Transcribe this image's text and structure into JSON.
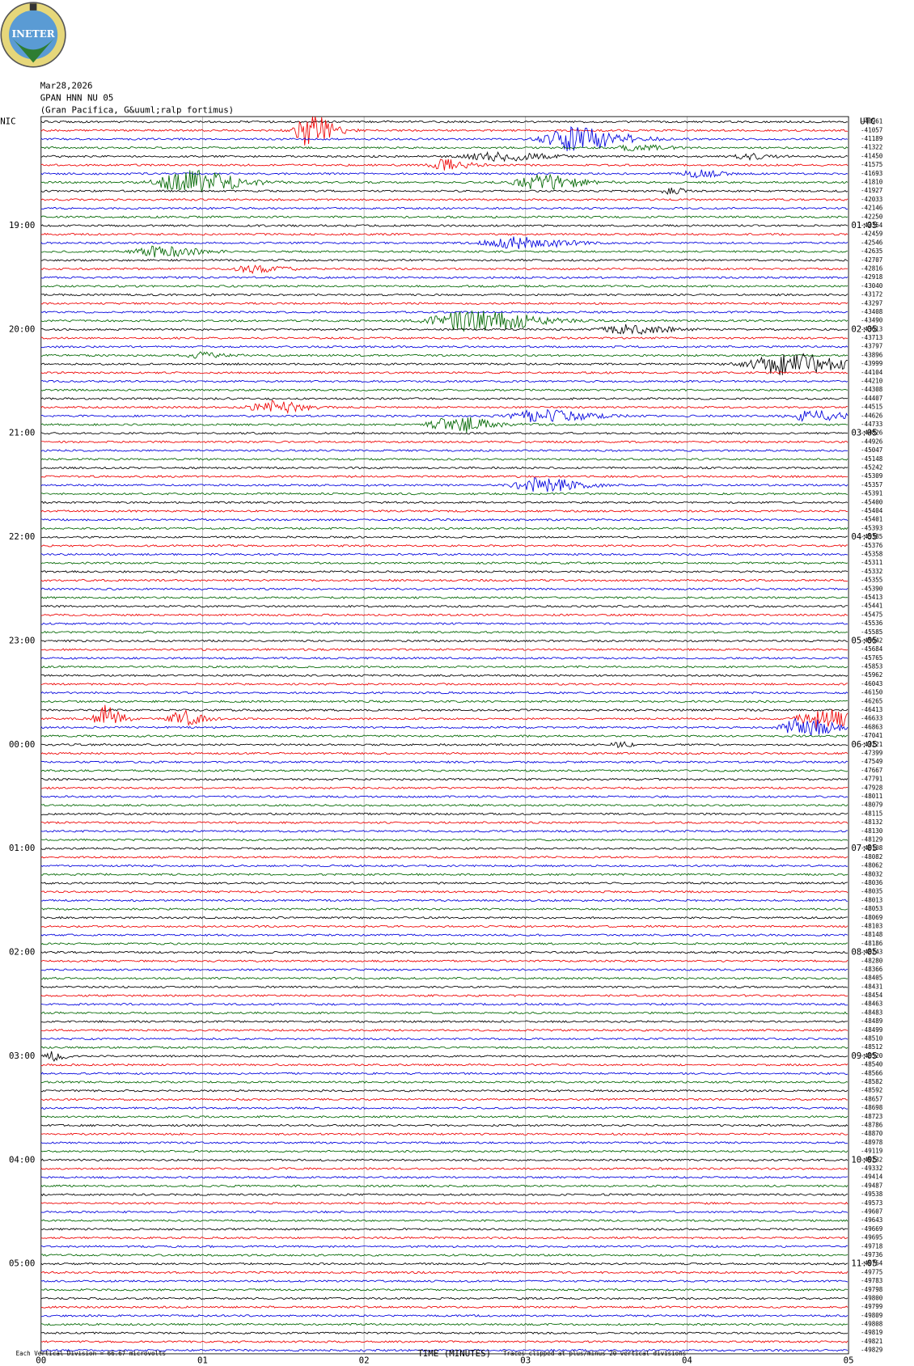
{
  "header": {
    "logo": "INETER",
    "date": "Mar28,2026",
    "station": "GPAN HNN NU 05",
    "site": "(Gran Pacifica, G&uuml;ralp fortimus)"
  },
  "left_zone": "NIC",
  "right_zone": "UTC",
  "left_hours": [
    "19:00",
    "20:00",
    "21:00",
    "22:00",
    "23:00",
    "00:00",
    "01:00",
    "02:00",
    "03:00",
    "04:00",
    "05:00"
  ],
  "right_hours": [
    "01:05",
    "02:05",
    "03:05",
    "04:05",
    "05:05",
    "06:05",
    "07:05",
    "08:05",
    "09:05",
    "10:05",
    "11:05"
  ],
  "trace_labels": [
    "-40961",
    "-41057",
    "-41189",
    "-41322",
    "-41450",
    "-41575",
    "-41693",
    "-41810",
    "-41927",
    "-42033",
    "-42146",
    "-42250",
    "-42354",
    "-42459",
    "-42546",
    "-42635",
    "-42707",
    "-42816",
    "-42918",
    "-43040",
    "-43172",
    "-43297",
    "-43408",
    "-43490",
    "-43613",
    "-43713",
    "-43797",
    "-43896",
    "-43999",
    "-44104",
    "-44210",
    "-44308",
    "-44407",
    "-44515",
    "-44626",
    "-44733",
    "-44826",
    "-44926",
    "-45047",
    "-45148",
    "-45242",
    "-45309",
    "-45357",
    "-45391",
    "-45400",
    "-45404",
    "-45401",
    "-45393",
    "-45385",
    "-45376",
    "-45358",
    "-45311",
    "-45332",
    "-45355",
    "-45390",
    "-45413",
    "-45441",
    "-45475",
    "-45536",
    "-45585",
    "-45642",
    "-45684",
    "-45765",
    "-45853",
    "-45962",
    "-46043",
    "-46150",
    "-46265",
    "-46413",
    "-46633",
    "-46863",
    "-47041",
    "-47221",
    "-47399",
    "-47549",
    "-47667",
    "-47791",
    "-47928",
    "-48011",
    "-48079",
    "-48115",
    "-48132",
    "-48130",
    "-48129",
    "-48108",
    "-48082",
    "-48062",
    "-48032",
    "-48036",
    "-48035",
    "-48013",
    "-48053",
    "-48069",
    "-48103",
    "-48148",
    "-48186",
    "-48243",
    "-48280",
    "-48366",
    "-48405",
    "-48431",
    "-48454",
    "-48463",
    "-48483",
    "-48489",
    "-48499",
    "-48510",
    "-48512",
    "-48520",
    "-48540",
    "-48566",
    "-48582",
    "-48592",
    "-48657",
    "-48698",
    "-48723",
    "-48786",
    "-48870",
    "-48978",
    "-49119",
    "-49232",
    "-49332",
    "-49414",
    "-49487",
    "-49538",
    "-49573",
    "-49607",
    "-49643",
    "-49669",
    "-49695",
    "-49718",
    "-49736",
    "-49754",
    "-49775",
    "-49783",
    "-49798",
    "-49800",
    "-49799",
    "-49809",
    "-49808",
    "-49819",
    "-49821",
    "-49829"
  ],
  "x_ticks": [
    "00",
    "01",
    "02",
    "03",
    "04",
    "05"
  ],
  "x_label": "TIME (MINUTES)",
  "footer_left": "Each Vertical Division =   66.67 microvolts",
  "footer_right": "Traces clipped at plus/minus 20 vertical divisions"
}
